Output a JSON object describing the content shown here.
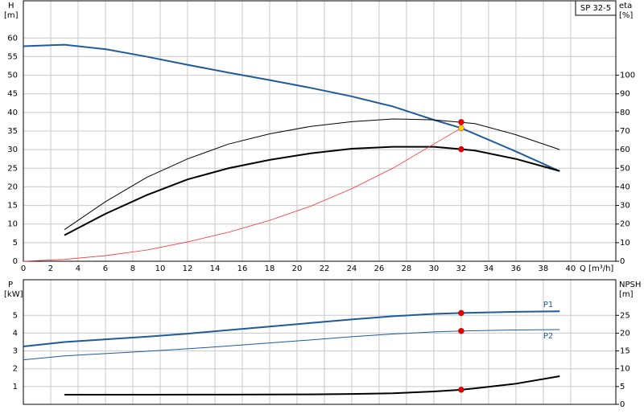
{
  "chart_data": [
    {
      "type": "line",
      "title": "SP 32-5",
      "y_label": "H",
      "y_unit": "[m]",
      "y2_label": "eta",
      "y2_unit": "[%]",
      "x_label": "Q [m³/h]",
      "xlim": [
        0,
        43.3
      ],
      "xticks": [
        0,
        2,
        4,
        6,
        8,
        10,
        12,
        14,
        16,
        18,
        20,
        22,
        24,
        26,
        28,
        30,
        32,
        34,
        36,
        38,
        40
      ],
      "ylim": [
        0,
        70
      ],
      "yticks": [
        0,
        5,
        10,
        15,
        20,
        25,
        30,
        35,
        40,
        45,
        50,
        55,
        60
      ],
      "y2lim": [
        0,
        140
      ],
      "y2ticks": [
        0,
        10,
        20,
        30,
        40,
        50,
        60,
        70,
        80,
        90,
        100
      ],
      "grid": true,
      "series": [
        {
          "color": "#1f5a9a",
          "width": 2,
          "x": [
            0,
            3,
            6,
            9,
            12,
            15,
            18,
            21,
            24,
            27,
            30,
            32,
            36,
            39.2
          ],
          "values": [
            57.8,
            58.2,
            57,
            55,
            52.8,
            50.7,
            48.7,
            46.6,
            44.3,
            41.6,
            38,
            35.8,
            29.5,
            24.2
          ]
        },
        {
          "color": "#000000",
          "width": 1,
          "axis": "y2",
          "x": [
            3,
            6,
            9,
            12,
            15,
            18,
            21,
            24,
            27,
            30,
            33,
            36,
            39.2
          ],
          "values": [
            17,
            32,
            45,
            55,
            63,
            68.5,
            72.5,
            75,
            76.5,
            76,
            74,
            68,
            60
          ]
        },
        {
          "color": "#000000",
          "width": 2,
          "axis": "y2",
          "x": [
            3,
            6,
            9,
            12,
            15,
            18,
            21,
            24,
            27,
            30,
            32,
            33,
            36,
            39.2
          ],
          "values": [
            14,
            25.5,
            35.5,
            44,
            50,
            54.5,
            58,
            60.5,
            61.5,
            61.5,
            60.2,
            59.5,
            55,
            48.5
          ]
        },
        {
          "color": "#ff3030",
          "width": 0.8,
          "x": [
            0,
            3,
            6,
            9,
            12,
            15,
            18,
            21,
            24,
            27,
            30,
            32
          ],
          "values": [
            0,
            0.5,
            1.5,
            3,
            5.2,
            7.8,
            11,
            14.8,
            19.5,
            25,
            31.5,
            35.8
          ]
        }
      ],
      "markers": [
        {
          "x": 32,
          "y": 74.8,
          "axis": "y2",
          "color": "#e00000"
        },
        {
          "x": 32,
          "y": 35.8,
          "color": "#f5d800"
        },
        {
          "x": 32,
          "y": 60.2,
          "axis": "y2",
          "color": "#e00000"
        }
      ]
    },
    {
      "type": "line",
      "y_label": "P",
      "y_unit": "[kW]",
      "y2_label": "NPSH",
      "y2_unit": "[m]",
      "xlim": [
        0,
        43.3
      ],
      "ylim": [
        0,
        7
      ],
      "yticks": [
        1,
        2,
        3,
        4,
        5
      ],
      "y2lim": [
        0,
        35
      ],
      "y2ticks": [
        0,
        5,
        10,
        15,
        20,
        25
      ],
      "grid": true,
      "series": [
        {
          "name": "P1",
          "color": "#1f5a9a",
          "width": 2,
          "x": [
            0,
            3,
            6,
            9,
            12,
            15,
            18,
            21,
            24,
            27,
            30,
            32,
            36,
            39.2
          ],
          "values": [
            3.25,
            3.5,
            3.65,
            3.8,
            3.97,
            4.17,
            4.37,
            4.57,
            4.77,
            4.95,
            5.08,
            5.13,
            5.2,
            5.23
          ]
        },
        {
          "name": "P2",
          "color": "#1f5a9a",
          "width": 1,
          "x": [
            0,
            3,
            6,
            9,
            12,
            15,
            18,
            21,
            24,
            27,
            30,
            32,
            36,
            39.2
          ],
          "values": [
            2.5,
            2.72,
            2.85,
            2.98,
            3.12,
            3.28,
            3.45,
            3.62,
            3.8,
            3.95,
            4.07,
            4.12,
            4.18,
            4.2
          ]
        },
        {
          "color": "#000000",
          "width": 2,
          "axis": "y2",
          "x": [
            3,
            9,
            15,
            21,
            24,
            27,
            30,
            32,
            33,
            36,
            39.2
          ],
          "values": [
            2.7,
            2.7,
            2.75,
            2.8,
            2.9,
            3.1,
            3.6,
            4.1,
            4.5,
            5.8,
            7.9
          ]
        }
      ],
      "markers": [
        {
          "x": 32,
          "y": 5.13,
          "color": "#e00000"
        },
        {
          "x": 32,
          "y": 4.12,
          "color": "#e00000"
        },
        {
          "x": 32,
          "y": 4.1,
          "axis": "y2",
          "color": "#e00000"
        }
      ]
    }
  ]
}
